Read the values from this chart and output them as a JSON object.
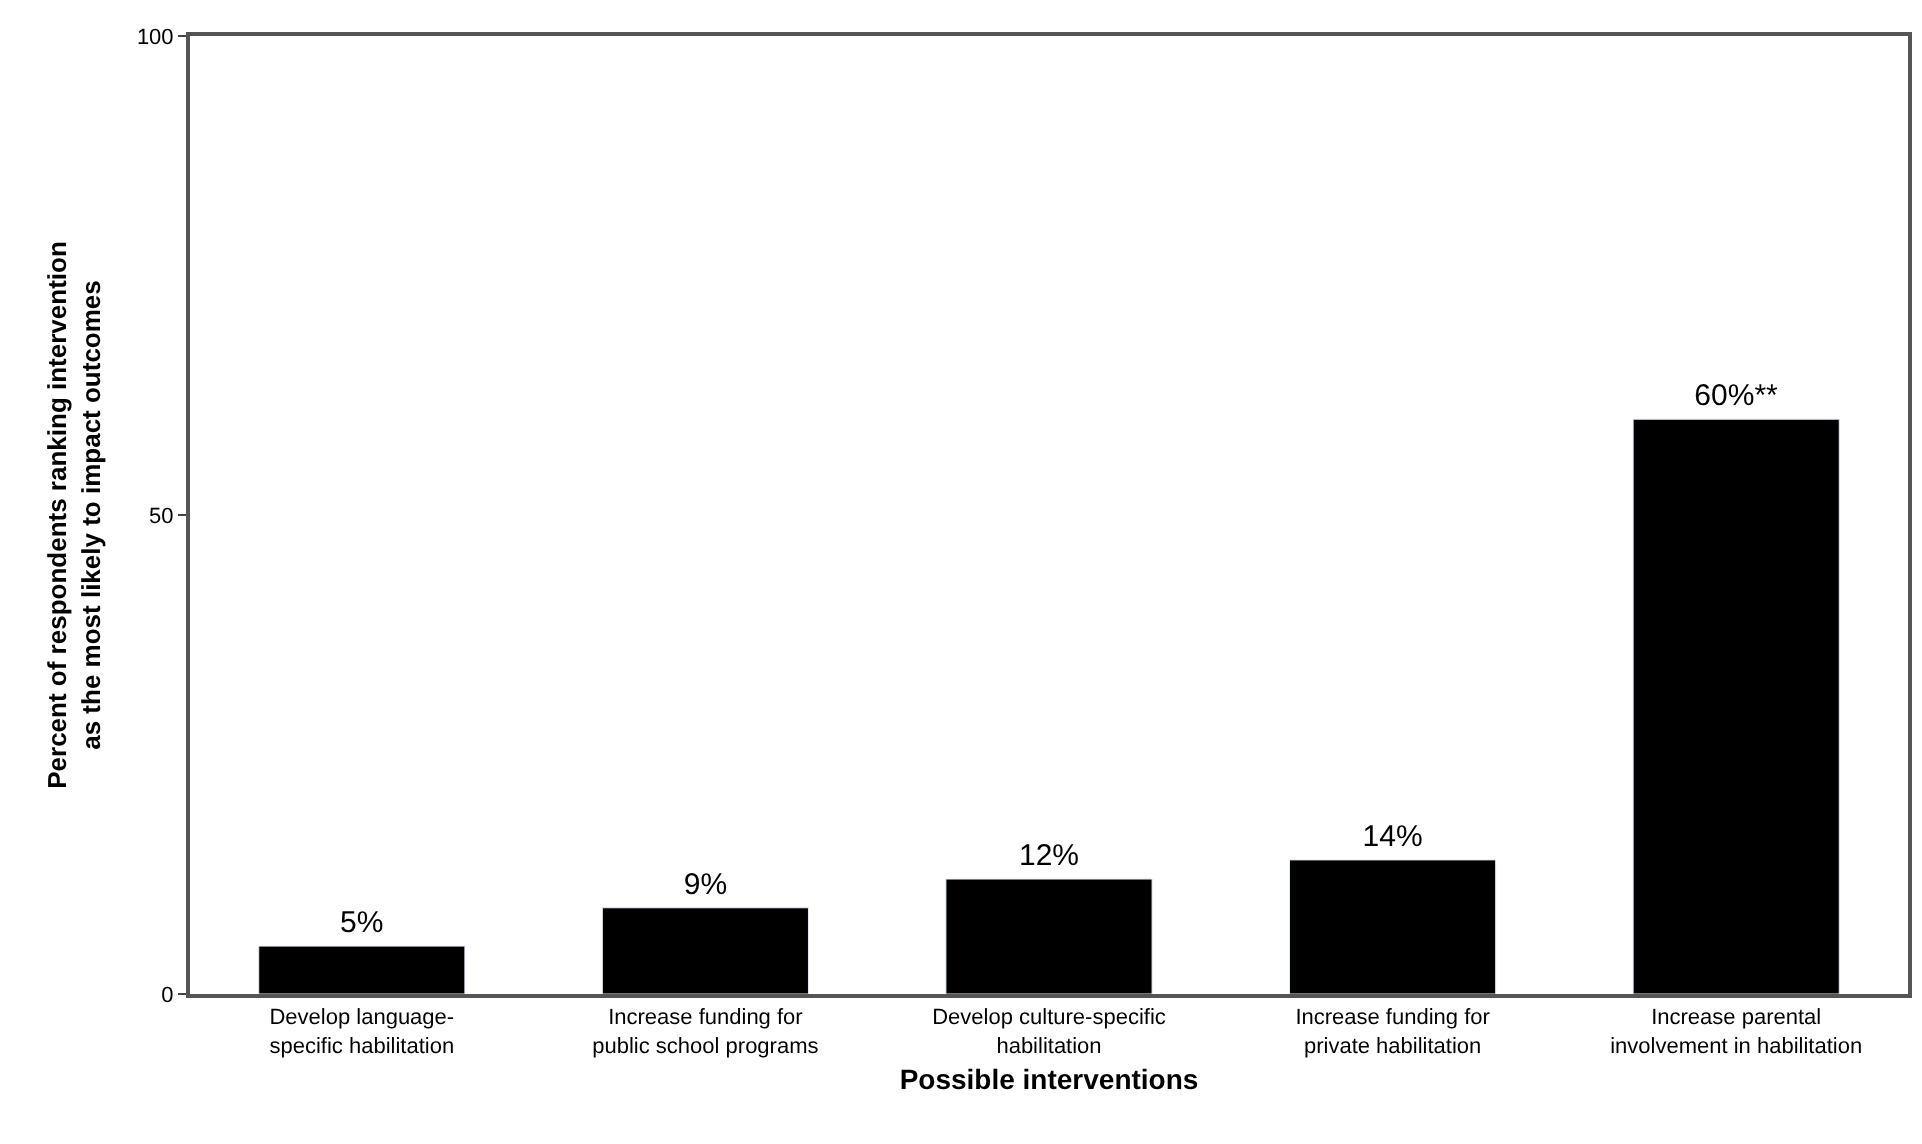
{
  "chart_data": {
    "type": "bar",
    "xlabel": "Possible interventions",
    "ylabel": "Percent of respondents ranking intervention\nas the most likely to impact outcomes",
    "categories": [
      "Develop language-\nspecific habilitation",
      "Increase funding for\npublic school programs",
      "Develop culture-specific\nhabilitation",
      "Increase funding for\nprivate habilitation",
      "Increase parental\ninvolvement in habilitation"
    ],
    "values": [
      5,
      9,
      12,
      14,
      60
    ],
    "value_labels": [
      "5%",
      "9%",
      "12%",
      "14%",
      "60%**"
    ],
    "color": "#000000",
    "ylim": [
      0,
      100
    ],
    "yticks": [
      0,
      50,
      100
    ],
    "grid": false
  }
}
